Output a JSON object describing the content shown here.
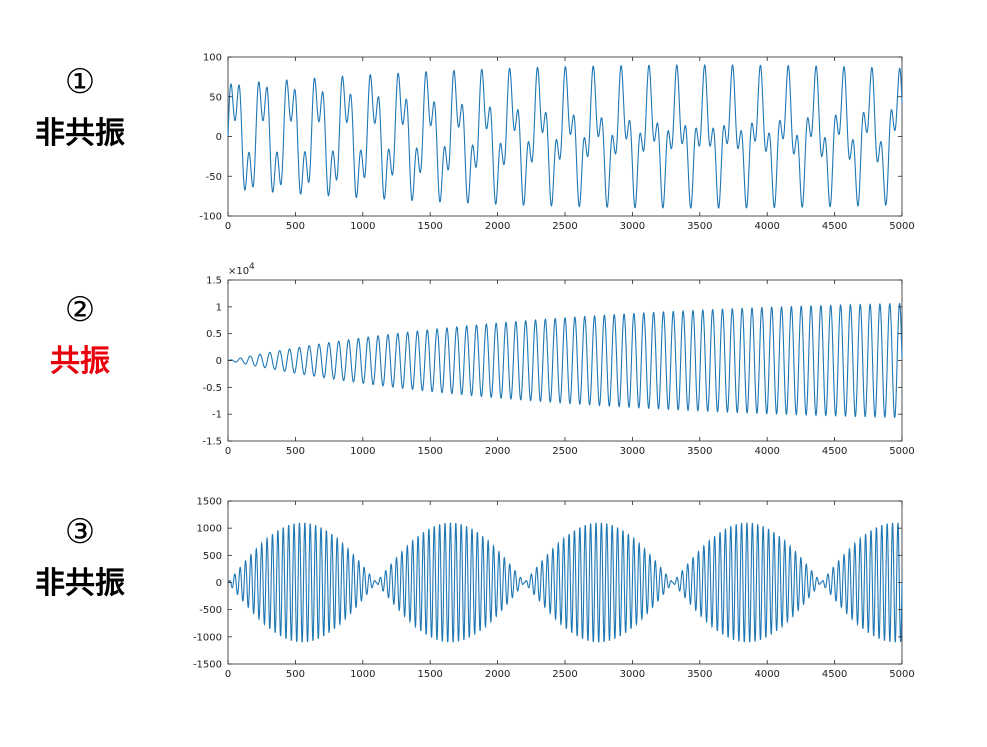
{
  "panels": [
    {
      "number": "①",
      "word": "非共振",
      "word_color": "#000000"
    },
    {
      "number": "②",
      "word": "共振",
      "word_color": "#e8000b"
    },
    {
      "number": "③",
      "word": "非共振",
      "word_color": "#000000"
    }
  ],
  "chart_data": [
    {
      "type": "line",
      "series": [
        {
          "formula": "55*sin(2*pi*x/205) + 35*sin(2*pi*x/69)",
          "color": "#1f77b4"
        }
      ],
      "x_range": [
        0,
        5000
      ],
      "ylim": [
        -100,
        100
      ],
      "xticks": [
        0,
        500,
        1000,
        1500,
        2000,
        2500,
        3000,
        3500,
        4000,
        4500,
        5000
      ],
      "yticks": [
        100,
        50,
        0,
        -50,
        -100
      ],
      "ytick_labels": [
        "100",
        "50",
        "0",
        "-50",
        "-100"
      ],
      "multiplier": ""
    },
    {
      "type": "line",
      "series": [
        {
          "formula": "12000*(1-exp(-x/2300)) * sin(2*pi*x/73)",
          "color": "#1f77b4"
        }
      ],
      "x_range": [
        0,
        5000
      ],
      "ylim": [
        -15000,
        15000
      ],
      "xticks": [
        0,
        500,
        1000,
        1500,
        2000,
        2500,
        3000,
        3500,
        4000,
        4500,
        5000
      ],
      "yticks": [
        15000,
        10000,
        5000,
        0,
        -5000,
        -10000,
        -15000
      ],
      "ytick_labels": [
        "1.5",
        "1",
        "0.5",
        "0",
        "-0.5",
        "-1",
        "-1.5"
      ],
      "multiplier": "×10",
      "multiplier_exp": "4"
    },
    {
      "type": "line",
      "series": [
        {
          "formula": "1100*|sin(pi*x/1100)| * sin(2*pi*x/40)",
          "color": "#1f77b4"
        }
      ],
      "x_range": [
        0,
        5000
      ],
      "ylim": [
        -1500,
        1500
      ],
      "xticks": [
        0,
        500,
        1000,
        1500,
        2000,
        2500,
        3000,
        3500,
        4000,
        4500,
        5000
      ],
      "yticks": [
        1500,
        1000,
        500,
        0,
        -500,
        -1000,
        -1500
      ],
      "ytick_labels": [
        "1500",
        "1000",
        "500",
        "0",
        "-500",
        "-1000",
        "-1500"
      ],
      "multiplier": ""
    }
  ]
}
